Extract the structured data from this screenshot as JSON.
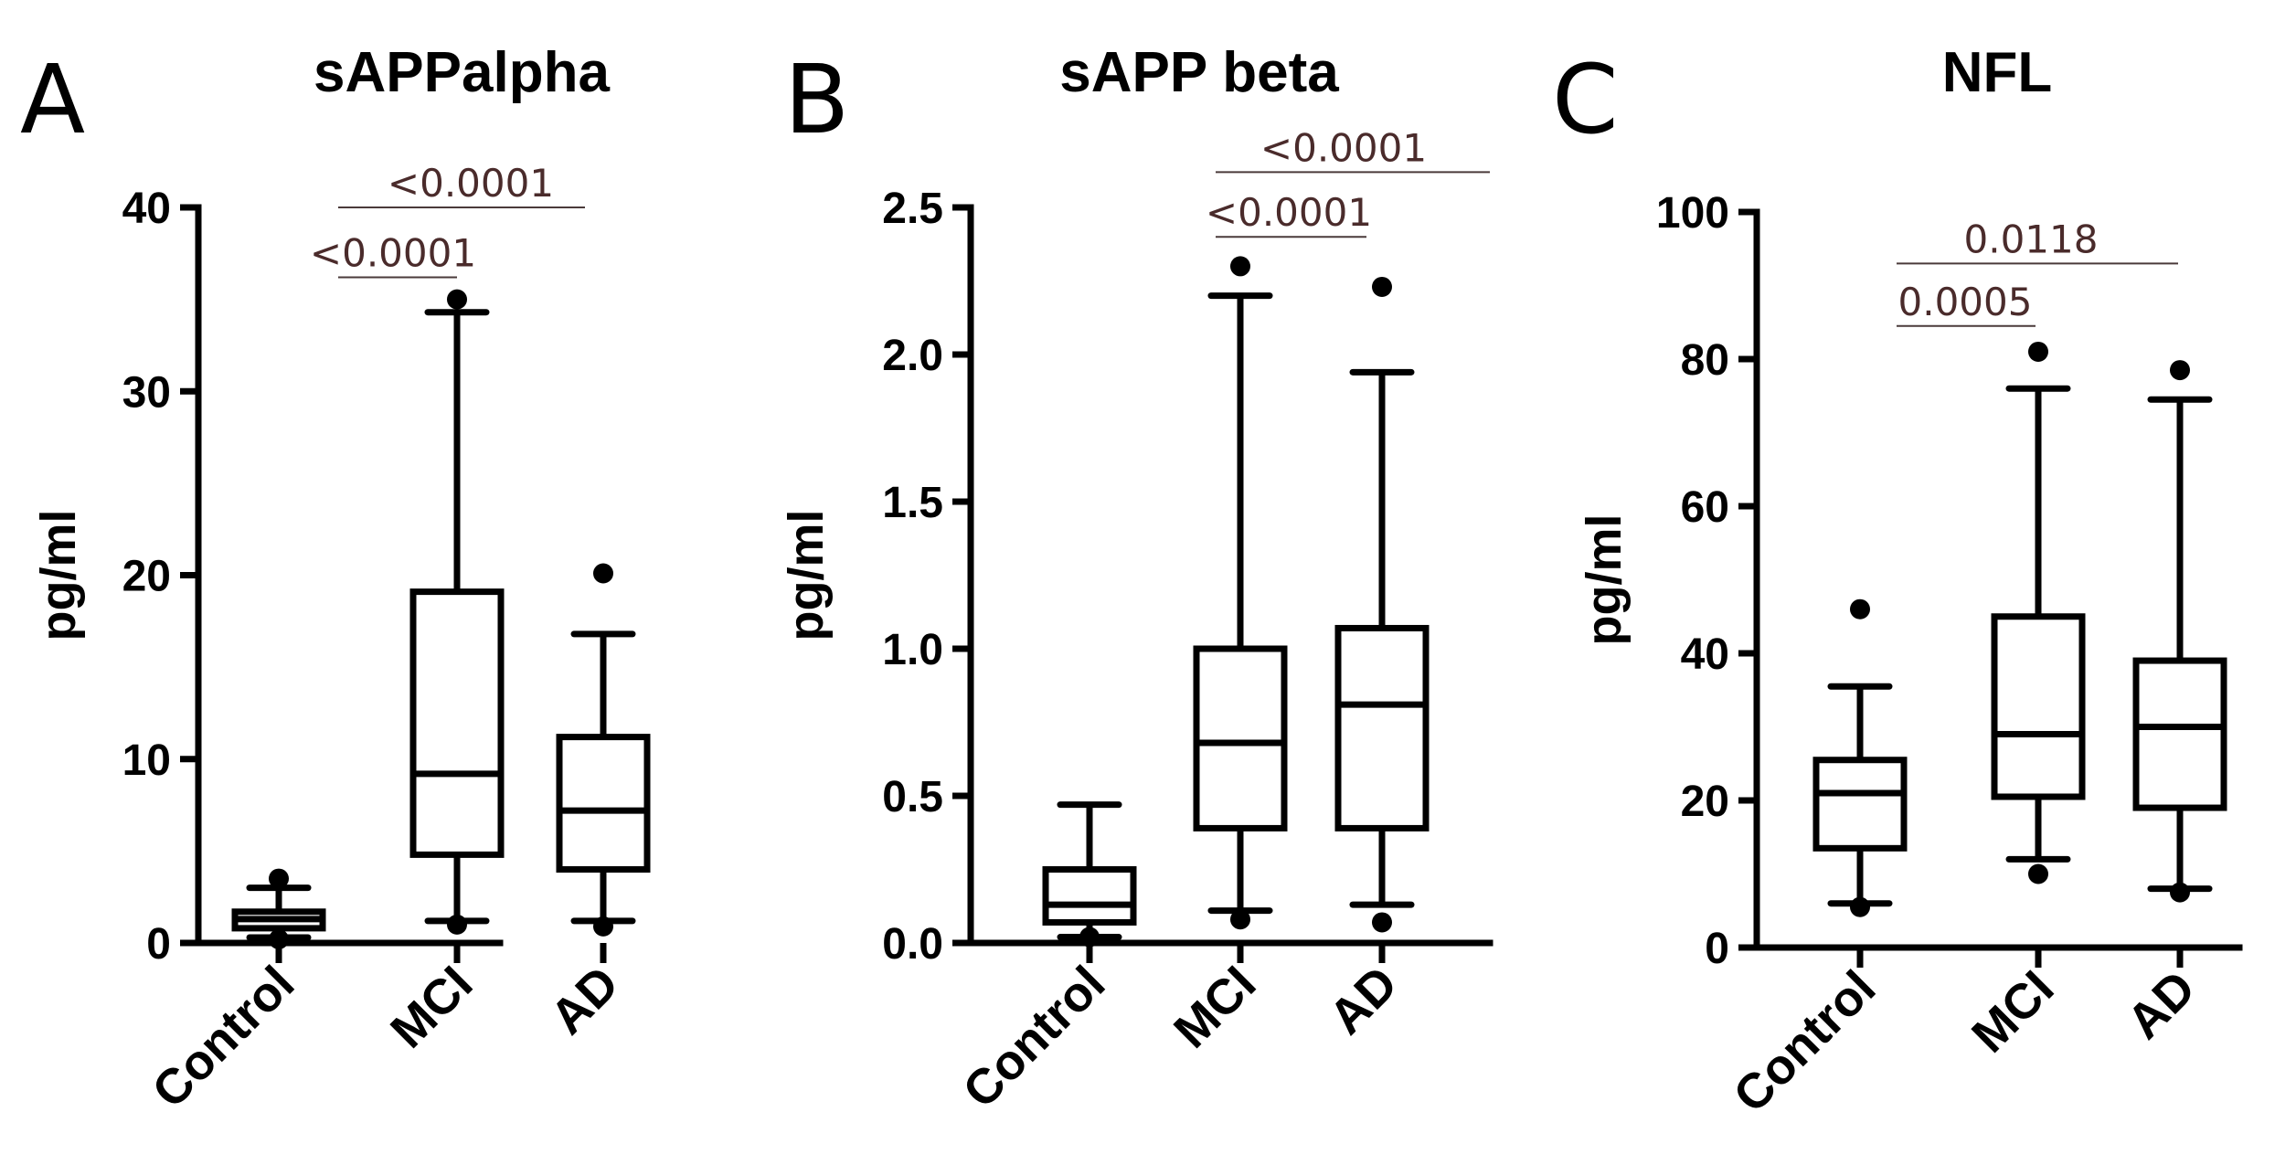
{
  "chart_data": [
    {
      "type": "box",
      "panel": "A",
      "title": "sAPPalpha",
      "ylabel": "pg/ml",
      "ylim": [
        0,
        40
      ],
      "yticks": [
        0,
        10,
        20,
        30,
        40
      ],
      "categories": [
        "Control",
        "MCI",
        "AD"
      ],
      "boxes": [
        {
          "min": 0.3,
          "q1": 0.8,
          "median": 1.3,
          "q3": 1.7,
          "max": 3.0,
          "outliers": [
            3.5,
            0.2
          ]
        },
        {
          "min": 1.2,
          "q1": 4.8,
          "median": 9.2,
          "q3": 19.1,
          "max": 34.3,
          "outliers": [
            35.0,
            1.0
          ]
        },
        {
          "min": 1.2,
          "q1": 4.0,
          "median": 7.2,
          "q3": 11.2,
          "max": 16.8,
          "outliers": [
            20.1,
            0.9
          ]
        }
      ],
      "significance": [
        {
          "from": 0,
          "to": 1,
          "label": "<0.0001",
          "level": 36.2
        },
        {
          "from": 0,
          "to": 2,
          "label": "<0.0001",
          "level": 40.0
        }
      ]
    },
    {
      "type": "box",
      "panel": "B",
      "title": "sAPP beta",
      "ylabel": "pg/ml",
      "ylim": [
        0,
        2.5
      ],
      "yticks": [
        "0.0",
        "0.5",
        "1.0",
        "1.5",
        "2.0",
        "2.5"
      ],
      "categories": [
        "Control",
        "MCI",
        "AD"
      ],
      "boxes": [
        {
          "min": 0.02,
          "q1": 0.07,
          "median": 0.13,
          "q3": 0.25,
          "max": 0.47,
          "outliers": [
            0.02
          ]
        },
        {
          "min": 0.11,
          "q1": 0.39,
          "median": 0.68,
          "q3": 1.0,
          "max": 2.2,
          "outliers": [
            2.3,
            0.08
          ]
        },
        {
          "min": 0.13,
          "q1": 0.39,
          "median": 0.81,
          "q3": 1.07,
          "max": 1.94,
          "outliers": [
            2.23,
            0.07
          ]
        }
      ],
      "significance": [
        {
          "from": 1,
          "to": 2,
          "label": "<0.0001",
          "level": 2.4
        },
        {
          "from": 1,
          "to": 3,
          "label": "<0.0001",
          "level": 2.62
        }
      ]
    },
    {
      "type": "box",
      "panel": "C",
      "title": "NFL",
      "ylabel": "pg/ml",
      "ylim": [
        0,
        100
      ],
      "yticks": [
        0,
        20,
        40,
        60,
        80,
        100
      ],
      "categories": [
        "Control",
        "MCI",
        "AD"
      ],
      "boxes": [
        {
          "min": 6,
          "q1": 13.5,
          "median": 21,
          "q3": 25.5,
          "max": 35.5,
          "outliers": [
            46,
            5.5
          ]
        },
        {
          "min": 12,
          "q1": 20.5,
          "median": 29,
          "q3": 45,
          "max": 76,
          "outliers": [
            81,
            10
          ]
        },
        {
          "min": 8,
          "q1": 19,
          "median": 30,
          "q3": 39,
          "max": 74.5,
          "outliers": [
            78.5,
            7.5
          ]
        }
      ],
      "significance": [
        {
          "from": 0,
          "to": 1,
          "label": "0.0005",
          "level": 84.5
        },
        {
          "from": 0,
          "to": 2,
          "label": "0.0118",
          "level": 93
        }
      ]
    }
  ]
}
